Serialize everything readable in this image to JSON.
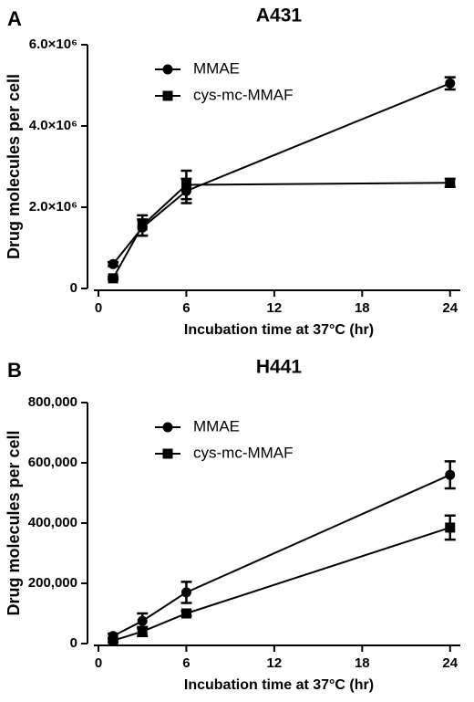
{
  "chart_data": [
    {
      "type": "line",
      "panel_label": "A",
      "title": "A431",
      "xlabel": "Incubation time at 37°C (hr)",
      "ylabel": "Drug molecules per cell",
      "x": [
        1,
        3,
        6,
        24
      ],
      "xlim": [
        0,
        24.7
      ],
      "xticks": [
        0,
        6,
        12,
        18,
        24
      ],
      "ylim": [
        0,
        6000000
      ],
      "yticks": [
        0,
        {
          "value": 2000000,
          "label": "2.0×10⁶"
        },
        {
          "value": 4000000,
          "label": "4.0×10⁶"
        },
        {
          "value": 6000000,
          "label": "6.0×10⁶"
        }
      ],
      "legend": "upper left",
      "series": [
        {
          "name": "MMAE",
          "color": "#000000",
          "marker": "circle",
          "values": [
            600000,
            1500000,
            2400000,
            5050000
          ],
          "errors": [
            50000,
            200000,
            300000,
            150000
          ]
        },
        {
          "name": "cys-mc-MMAF",
          "color": "#000000",
          "marker": "square",
          "values": [
            250000,
            1550000,
            2550000,
            2600000
          ],
          "errors": [
            30000,
            250000,
            350000,
            100000
          ]
        }
      ]
    },
    {
      "type": "line",
      "panel_label": "B",
      "title": "H441",
      "xlabel": "Incubation time at 37°C (hr)",
      "ylabel": "Drug molecules per cell",
      "x": [
        1,
        3,
        6,
        24
      ],
      "xlim": [
        0,
        24.7
      ],
      "xticks": [
        0,
        6,
        12,
        18,
        24
      ],
      "ylim": [
        0,
        800000
      ],
      "yticks": [
        0,
        {
          "value": 200000,
          "label": "200,000"
        },
        {
          "value": 400000,
          "label": "400,000"
        },
        {
          "value": 600000,
          "label": "600,000"
        },
        {
          "value": 800000,
          "label": "800,000"
        }
      ],
      "legend": "upper left",
      "series": [
        {
          "name": "MMAE",
          "color": "#000000",
          "marker": "circle",
          "values": [
            25000,
            75000,
            170000,
            560000
          ],
          "errors": [
            8000,
            25000,
            35000,
            45000
          ]
        },
        {
          "name": "cys-mc-MMAF",
          "color": "#000000",
          "marker": "square",
          "values": [
            10000,
            40000,
            100000,
            385000
          ],
          "errors": [
            5000,
            15000,
            8000,
            40000
          ]
        }
      ]
    }
  ]
}
